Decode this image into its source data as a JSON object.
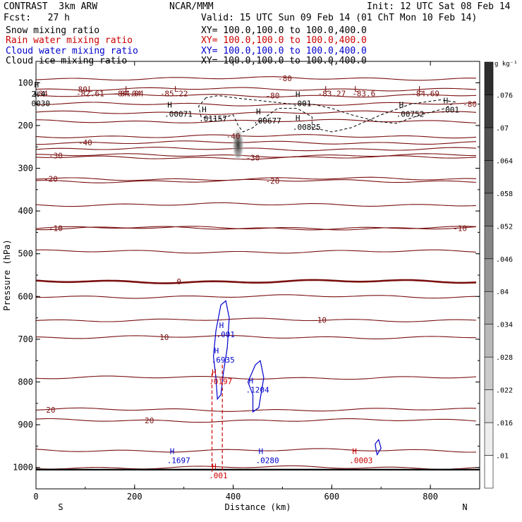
{
  "header": {
    "model": "CONTRAST  3km ARW",
    "org": "NCAR/MMM",
    "init": "Init: 12 UTC Sat 08 Feb 14",
    "fcst": "Fcst:   27 h",
    "valid": "Valid: 15 UTC Sun 09 Feb 14 (01 ChT Mon 10 Feb 14)",
    "fields": [
      {
        "name": "Snow mixing ratio",
        "xy": "XY= 100.0,100.0 to 100.0,400.0",
        "color": "#000000"
      },
      {
        "name": "Rain water mixing ratio",
        "xy": "XY= 100.0,100.0 to 100.0,400.0",
        "color": "#cc0000"
      },
      {
        "name": "Cloud water mixing ratio",
        "xy": "XY= 100.0,100.0 to 100.0,400.0",
        "color": "#0000cc"
      },
      {
        "name": "Cloud ice mixing ratio",
        "xy": "XY= 100.0,100.0 to 100.0,400.0",
        "color": "#000000"
      }
    ]
  },
  "chart_data": {
    "type": "contour",
    "xlabel": "Distance (km)",
    "ylabel": "Pressure (hPa)",
    "xlim": [
      0,
      900
    ],
    "ylim": [
      1050,
      50
    ],
    "x_ticks": [
      0,
      200,
      400,
      600,
      800
    ],
    "y_ticks": [
      100,
      200,
      300,
      400,
      500,
      600,
      700,
      800,
      900,
      1000
    ],
    "x_end_labels": {
      "left": "S",
      "right": "N"
    },
    "colorbar": {
      "unit": "g kg⁻¹",
      "levels": [
        ".01",
        ".016",
        ".022",
        ".028",
        ".034",
        ".04",
        ".046",
        ".052",
        ".058",
        ".064",
        ".07",
        ".076"
      ]
    },
    "temperature_contours": [
      {
        "p": 90,
        "label": "-80",
        "label_x": 505
      },
      {
        "p": 115,
        "label": "-80",
        "label_x": 90
      },
      {
        "p": 130,
        "label": "-80",
        "label_x": 480
      },
      {
        "p": 150,
        "label": "-80",
        "label_x": 880
      },
      {
        "p": 170
      },
      {
        "p": 190
      },
      {
        "p": 225,
        "label": "-40",
        "label_x": 400
      },
      {
        "p": 240,
        "label": "-40",
        "label_x": 100
      },
      {
        "p": 255
      },
      {
        "p": 270,
        "label": "-30",
        "label_x": 40
      },
      {
        "p": 275,
        "label": "-30",
        "label_x": 440
      },
      {
        "p": 325,
        "label": "-20",
        "label_x": 30
      },
      {
        "p": 330,
        "label": "-20",
        "label_x": 480
      },
      {
        "p": 385
      },
      {
        "p": 440,
        "label": "-10",
        "label_x": 40
      },
      {
        "p": 440,
        "label": "-10",
        "label_x": 860
      },
      {
        "p": 495
      },
      {
        "p": 565,
        "label": "0",
        "label_x": 290,
        "bold": true
      },
      {
        "p": 600
      },
      {
        "p": 655,
        "label": "10",
        "label_x": 580
      },
      {
        "p": 695,
        "label": "10",
        "label_x": 260
      },
      {
        "p": 790
      },
      {
        "p": 865,
        "label": "20",
        "label_x": 30
      },
      {
        "p": 890,
        "label": "20",
        "label_x": 230
      },
      {
        "p": 960
      },
      {
        "p": 1000
      }
    ],
    "temperature_labels": [
      {
        "x": 10,
        "p": 112,
        "text": "-84"
      },
      {
        "x": 185,
        "p": 112,
        "text": "-84.04"
      },
      {
        "x": 190,
        "p": 112,
        "text": "-84.04"
      },
      {
        "x": 110,
        "p": 112,
        "text": "-82.61"
      },
      {
        "x": 280,
        "p": 112,
        "text": "-85.22"
      },
      {
        "x": 600,
        "p": 112,
        "text": "-83.27"
      },
      {
        "x": 665,
        "p": 112,
        "text": "-83.6"
      },
      {
        "x": 790,
        "p": 112,
        "text": "-84.69"
      }
    ],
    "low_markers": [
      {
        "x": 110,
        "p": 98
      },
      {
        "x": 185,
        "p": 98
      },
      {
        "x": 285,
        "p": 98
      },
      {
        "x": 590,
        "p": 98
      },
      {
        "x": 650,
        "p": 98
      },
      {
        "x": 780,
        "p": 98
      }
    ],
    "ice_maxima": [
      {
        "x": 5,
        "p": 118,
        "text": "2.4"
      },
      {
        "x": 5,
        "p": 140,
        "text": "0030"
      },
      {
        "x": 275,
        "p": 165,
        "text": ".00071"
      },
      {
        "x": 345,
        "p": 175,
        "text": ".01157"
      },
      {
        "x": 455,
        "p": 180,
        "text": ".00677"
      },
      {
        "x": 535,
        "p": 195,
        "text": ".00825"
      },
      {
        "x": 745,
        "p": 165,
        "text": ".00752"
      },
      {
        "x": 535,
        "p": 140,
        "text": ".001"
      },
      {
        "x": 835,
        "p": 155,
        "text": ".001"
      }
    ],
    "cloud_water_maxima": [
      {
        "x": 380,
        "p": 680,
        "text": ".001"
      },
      {
        "x": 370,
        "p": 740,
        "text": ".6935"
      },
      {
        "x": 440,
        "p": 810,
        "text": ".1204"
      },
      {
        "x": 280,
        "p": 975,
        "text": ".1697"
      },
      {
        "x": 460,
        "p": 975,
        "text": ".0280"
      }
    ],
    "rain_water_maxima": [
      {
        "x": 365,
        "p": 790,
        "text": ".0197"
      },
      {
        "x": 365,
        "p": 1010,
        "text": ".001"
      },
      {
        "x": 650,
        "p": 975,
        "text": ".0003"
      }
    ]
  }
}
